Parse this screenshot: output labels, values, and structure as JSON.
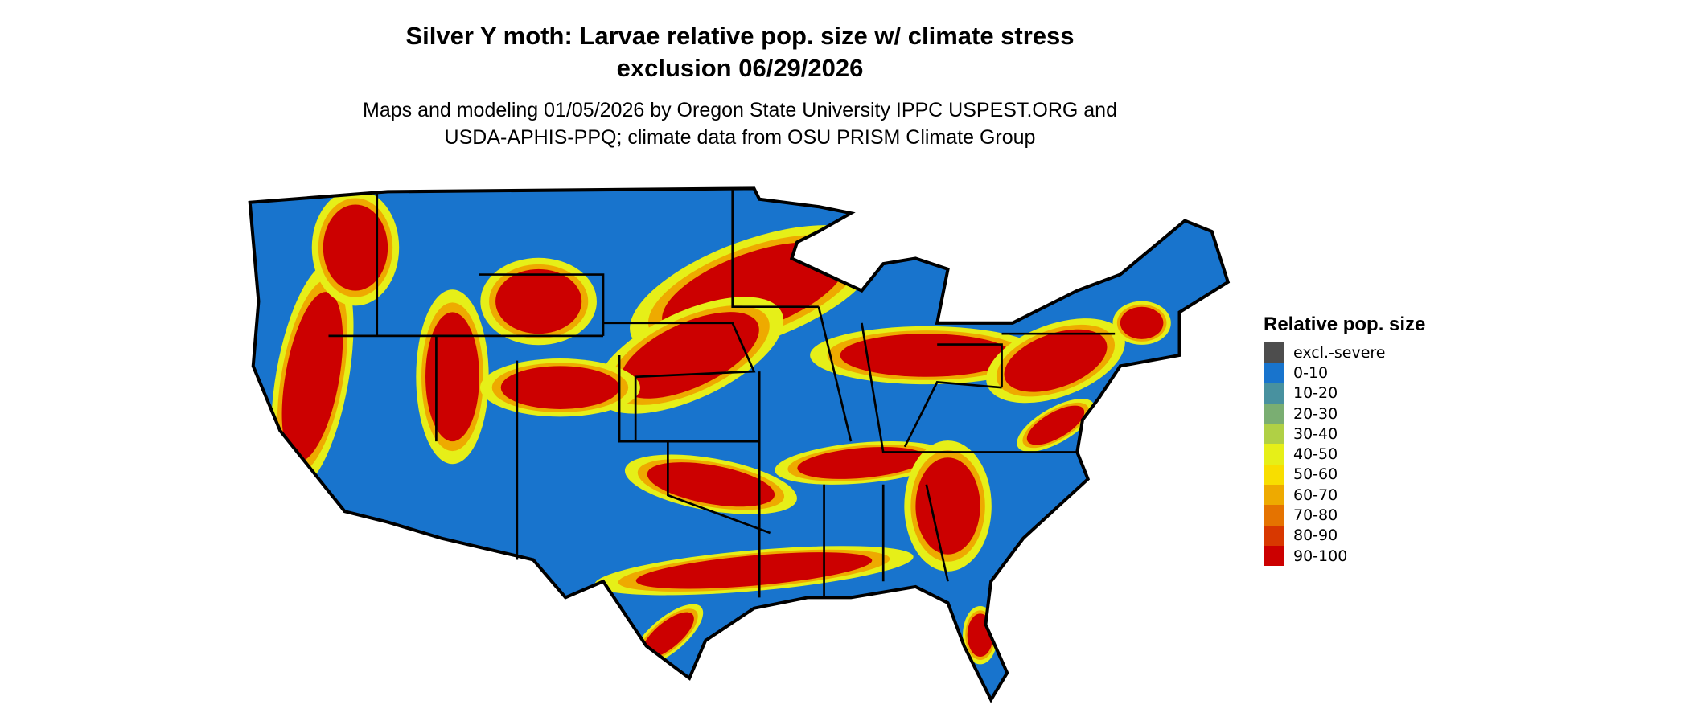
{
  "title_line1": "Silver Y moth: Larvae relative pop. size w/ climate stress",
  "title_line2": "exclusion 06/29/2026",
  "subtitle_line1": "Maps and modeling 01/05/2026 by Oregon State University IPPC USPEST.ORG and",
  "subtitle_line2": "USDA-APHIS-PPQ; climate data from OSU PRISM Climate Group",
  "legend": {
    "title": "Relative pop. size",
    "items": [
      {
        "label": "excl.-severe",
        "color": "#4d4d4d"
      },
      {
        "label": "0-10",
        "color": "#1874cd"
      },
      {
        "label": "10-20",
        "color": "#48919f"
      },
      {
        "label": "20-30",
        "color": "#7aae72"
      },
      {
        "label": "30-40",
        "color": "#b0d045"
      },
      {
        "label": "40-50",
        "color": "#e6ef18"
      },
      {
        "label": "50-60",
        "color": "#f8de00"
      },
      {
        "label": "60-70",
        "color": "#eeaa00"
      },
      {
        "label": "70-80",
        "color": "#e57300"
      },
      {
        "label": "80-90",
        "color": "#d83800"
      },
      {
        "label": "90-100",
        "color": "#cc0000"
      }
    ]
  }
}
